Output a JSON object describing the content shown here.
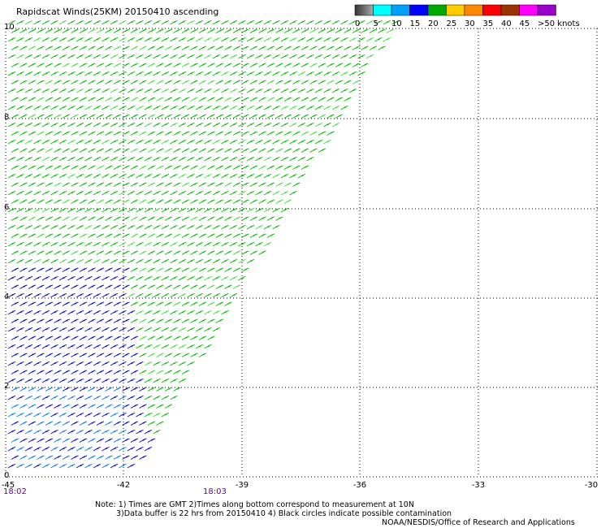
{
  "title": "Rapidscat Winds(25KM) 20150410 ascending",
  "legend": {
    "colors": [
      "#808080",
      "#00ffff",
      "#00a0ff",
      "#0000ff",
      "#00aa00",
      "#ffcc00",
      "#ff8800",
      "#ff0000",
      "#993300",
      "#ff00ff",
      "#9900cc"
    ],
    "labels": [
      "0",
      "5",
      "10",
      "15",
      "20",
      "25",
      "30",
      "35",
      "40",
      "45",
      ">50 knots"
    ]
  },
  "map": {
    "lon_ticks": [
      "-45",
      "-42",
      "-39",
      "-36",
      "-33",
      "-30"
    ],
    "lat_ticks": [
      "10",
      "8",
      "6",
      "4",
      "2",
      "0"
    ],
    "lon_range": [
      -45,
      -30
    ],
    "lat_range": [
      0,
      10
    ],
    "grid": true,
    "swath_color_regions": "green north/east, blue south-west",
    "times": [
      "18:02",
      "18:03"
    ]
  },
  "notes": {
    "line1": "Note: 1) Times are GMT 2)Times along bottom correspond to measurement at 10N",
    "line2": "3)Data buffer is 22 hrs from 20150410 4) Black circles indicate possible contamination",
    "credit": "NOAA/NESDIS/Office of Research and Applications"
  }
}
